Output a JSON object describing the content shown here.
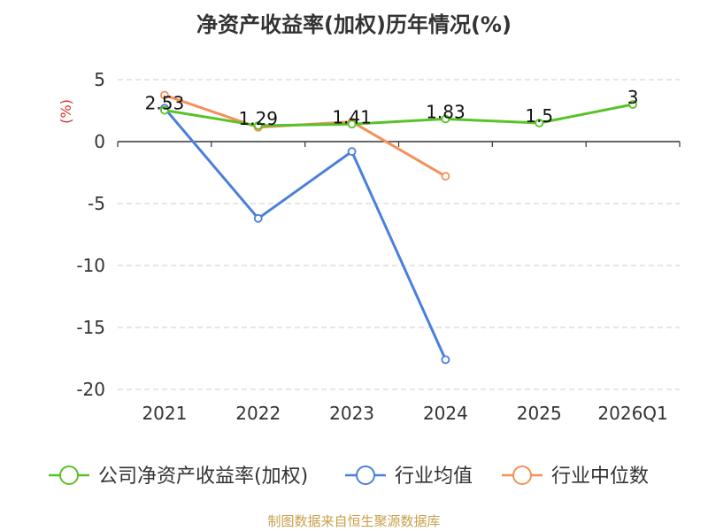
{
  "chart_data": {
    "type": "line",
    "title": "净资产收益率(加权)历年情况(%)",
    "ylabel": "(%)",
    "xlabel": "",
    "categories": [
      "2021",
      "2022",
      "2023",
      "2024",
      "2025",
      "2026Q1"
    ],
    "ylim": [
      -20,
      5
    ],
    "yticks": [
      5,
      0,
      -5,
      -10,
      -15,
      -20
    ],
    "grid": "horizontal-dashed",
    "legend_position": "bottom",
    "series": [
      {
        "name": "公司净资产收益率(加权)",
        "color": "#5ac229",
        "values": [
          2.53,
          1.29,
          1.41,
          1.83,
          1.5,
          3
        ],
        "labels": [
          "2.53",
          "1.29",
          "1.41",
          "1.83",
          "1.5",
          "3"
        ]
      },
      {
        "name": "行业均值",
        "color": "#4a7fdc",
        "values": [
          2.7,
          -6.2,
          -0.8,
          -17.6,
          null,
          null
        ]
      },
      {
        "name": "行业中位数",
        "color": "#f5905a",
        "values": [
          3.75,
          1.15,
          1.6,
          -2.8,
          null,
          null
        ]
      }
    ]
  },
  "source": "制图数据来自恒生聚源数据库"
}
